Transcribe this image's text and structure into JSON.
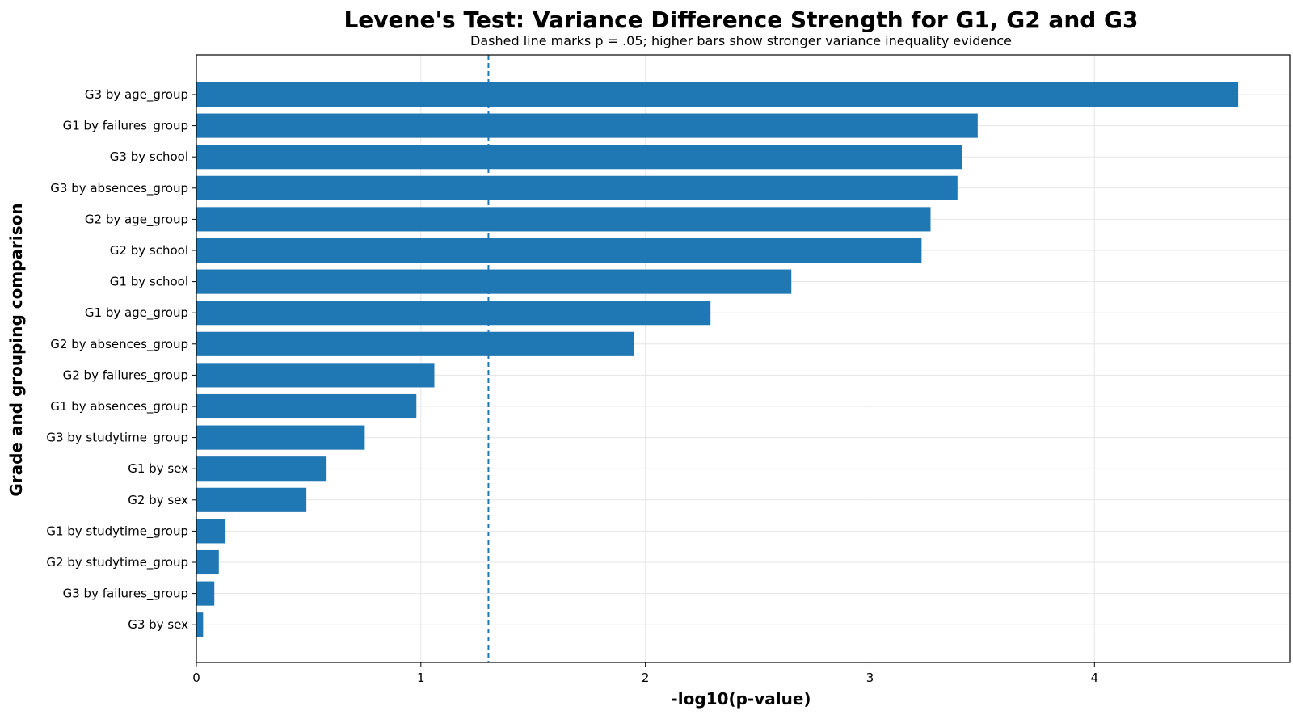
{
  "chart_data": {
    "type": "bar",
    "orientation": "horizontal",
    "title": "Levene's Test: Variance Difference Strength for G1, G2 and G3",
    "subtitle": "Dashed line marks p = .05; higher bars show stronger variance inequality evidence",
    "xlabel": "-log10(p-value)",
    "ylabel": "Grade and grouping comparison",
    "xlim": [
      0,
      4.87
    ],
    "xticks": [
      0,
      1,
      2,
      3,
      4
    ],
    "grid": true,
    "reference_line": {
      "x": 1.301
    },
    "bar_color": "#1f77b4",
    "categories": [
      "G3 by age_group",
      "G1 by failures_group",
      "G3 by school",
      "G3 by absences_group",
      "G2 by age_group",
      "G2 by school",
      "G1 by school",
      "G1 by age_group",
      "G2 by absences_group",
      "G2 by failures_group",
      "G1 by absences_group",
      "G3 by studytime_group",
      "G1 by sex",
      "G2 by sex",
      "G1 by studytime_group",
      "G2 by studytime_group",
      "G3 by failures_group",
      "G3 by sex"
    ],
    "values": [
      4.64,
      3.48,
      3.41,
      3.39,
      3.27,
      3.23,
      2.65,
      2.29,
      1.95,
      1.06,
      0.98,
      0.75,
      0.58,
      0.49,
      0.13,
      0.1,
      0.08,
      0.03
    ]
  }
}
